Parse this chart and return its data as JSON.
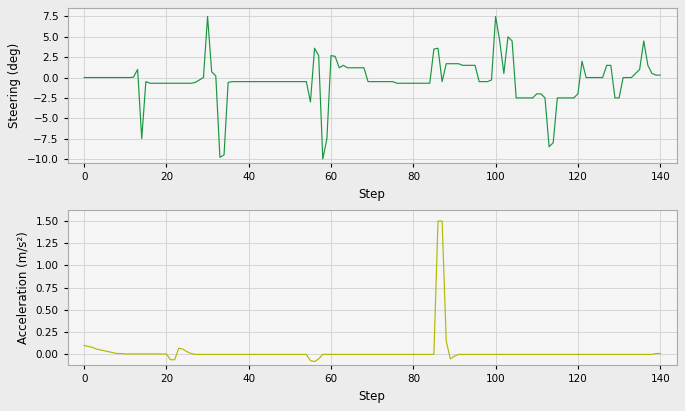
{
  "steering_color": "#1a9641",
  "accel_color": "#b5b800",
  "background_color": "#f5f5f5",
  "grid_color": "#d0d0d0",
  "steering_ylim": [
    -10.5,
    8.5
  ],
  "steering_yticks": [
    -10.0,
    -7.5,
    -5.0,
    -2.5,
    0.0,
    2.5,
    5.0,
    7.5
  ],
  "accel_ylim": [
    -0.12,
    1.62
  ],
  "accel_yticks": [
    0.0,
    0.25,
    0.5,
    0.75,
    1.0,
    1.25,
    1.5
  ],
  "xlim": [
    -4,
    144
  ],
  "xticks": [
    0,
    20,
    40,
    60,
    80,
    100,
    120,
    140
  ],
  "xlabel": "Step",
  "steering_ylabel": "Steering (deg)",
  "accel_ylabel": "Acceleration (m/s²)",
  "figsize": [
    6.85,
    4.11
  ],
  "dpi": 100
}
